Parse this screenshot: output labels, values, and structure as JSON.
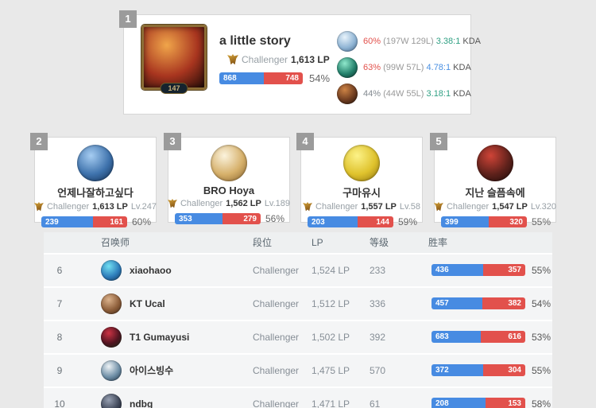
{
  "colors": {
    "win_blue": "#478be2",
    "loss_red": "#e2514c",
    "page_bg": "#e9e9e9",
    "kda_teal": "#2fa083",
    "kda_blue": "#4a90e2",
    "winpct_red": "#e2514c",
    "winpct_gray": "#82898f"
  },
  "top_player": {
    "rank": "1",
    "name": "a little story",
    "tier": "Challenger",
    "lp": "1,613 LP",
    "level": "147",
    "wins": "868",
    "losses": "748",
    "win_pct": "54%",
    "portrait_colors": [
      "#f0a54a",
      "#a8351f",
      "#270d08"
    ],
    "champions": [
      {
        "win_pct": "60%",
        "win_color": "#e2514c",
        "record": "(197W 129L)",
        "kda": "3.38:1",
        "kda_color": "#2fa083",
        "kda_label": "KDA",
        "icon_colors": [
          "#e8f3fb",
          "#8fb4d4",
          "#3c5c7e"
        ]
      },
      {
        "win_pct": "63%",
        "win_color": "#e2514c",
        "record": "(99W 57L)",
        "kda": "4.78:1",
        "kda_color": "#4a90e2",
        "kda_label": "KDA",
        "icon_colors": [
          "#8fe8cc",
          "#23806b",
          "#0b2824"
        ]
      },
      {
        "win_pct": "44%",
        "win_color": "#82898f",
        "record": "(44W 55L)",
        "kda": "3.18:1",
        "kda_color": "#2fa083",
        "kda_label": "KDA",
        "icon_colors": [
          "#cd8345",
          "#6e3c20",
          "#1c100a"
        ]
      }
    ]
  },
  "cards": [
    {
      "rank": "2",
      "name": "언제나잘하고싶다",
      "tier": "Challenger",
      "lp": "1,613 LP",
      "level": "Lv.247",
      "wins": "239",
      "losses": "161",
      "win_pct": "60%",
      "avatar_colors": [
        "#a6cdf2",
        "#3e72ac",
        "#102a4c"
      ]
    },
    {
      "rank": "3",
      "name": "BRO Hoya",
      "tier": "Challenger",
      "lp": "1,562 LP",
      "level": "Lv.189",
      "wins": "353",
      "losses": "279",
      "win_pct": "56%",
      "avatar_colors": [
        "#fbf3dd",
        "#d6b06a",
        "#85602c"
      ]
    },
    {
      "rank": "4",
      "name": "구마유시",
      "tier": "Challenger",
      "lp": "1,557 LP",
      "level": "Lv.58",
      "wins": "203",
      "losses": "144",
      "win_pct": "59%",
      "avatar_colors": [
        "#fcf288",
        "#dfc22c",
        "#8c7110"
      ]
    },
    {
      "rank": "5",
      "name": "지난 슬픔속에",
      "tier": "Challenger",
      "lp": "1,547 LP",
      "level": "Lv.320",
      "wins": "399",
      "losses": "320",
      "win_pct": "55%",
      "avatar_colors": [
        "#cf4437",
        "#5e211b",
        "#1a0c0a"
      ]
    }
  ],
  "table": {
    "headers": {
      "summoner": "召唤师",
      "tier": "段位",
      "lp": "LP",
      "level": "等级",
      "winrate": "胜率"
    },
    "rows": [
      {
        "rank": "6",
        "name": "xiaohaoo",
        "tier": "Challenger",
        "lp": "1,524 LP",
        "level": "233",
        "wins": "436",
        "losses": "357",
        "win_pct": "55%",
        "avatar_colors": [
          "#72e0f2",
          "#2d7cba",
          "#11304f"
        ]
      },
      {
        "rank": "7",
        "name": "KT Ucal",
        "tier": "Challenger",
        "lp": "1,512 LP",
        "level": "336",
        "wins": "457",
        "losses": "382",
        "win_pct": "54%",
        "avatar_colors": [
          "#dbb28c",
          "#8d5e3a",
          "#3a2517"
        ]
      },
      {
        "rank": "8",
        "name": "T1 Gumayusi",
        "tier": "Challenger",
        "lp": "1,502 LP",
        "level": "392",
        "wins": "683",
        "losses": "616",
        "win_pct": "53%",
        "avatar_colors": [
          "#cc3344",
          "#4f1420",
          "#142e18"
        ]
      },
      {
        "rank": "9",
        "name": "아이스빙수",
        "tier": "Challenger",
        "lp": "1,475 LP",
        "level": "570",
        "wins": "372",
        "losses": "304",
        "win_pct": "55%",
        "avatar_colors": [
          "#eef3f6",
          "#6e8ea6",
          "#1b2d3f"
        ]
      },
      {
        "rank": "10",
        "name": "ndbg",
        "tier": "Challenger",
        "lp": "1,471 LP",
        "level": "61",
        "wins": "208",
        "losses": "153",
        "win_pct": "58%",
        "avatar_colors": [
          "#97a0b2",
          "#3e4658",
          "#141820"
        ]
      }
    ]
  }
}
